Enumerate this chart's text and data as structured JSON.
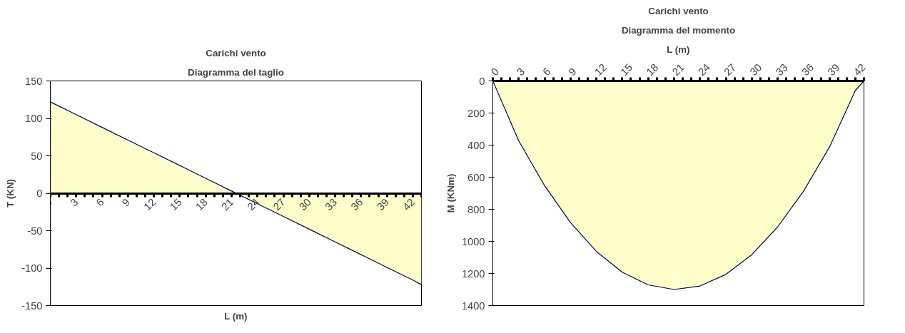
{
  "chart_data": [
    {
      "type": "area",
      "title": "Carichi vento",
      "subtitle": "Diagramma del taglio",
      "xlabel": "L (m)",
      "ylabel": "T (KN)",
      "x": [
        0,
        3,
        6,
        9,
        12,
        15,
        18,
        21,
        24,
        27,
        30,
        33,
        36,
        39,
        42,
        43
      ],
      "series": [
        {
          "color": "#ffffcc",
          "values": [
            122,
            105,
            88,
            71,
            54,
            37,
            20,
            3,
            -14,
            -31,
            -48,
            -65,
            -82,
            -99,
            -116,
            -122
          ]
        }
      ],
      "xlim": [
        0,
        43
      ],
      "xticks": [
        0,
        {
          "value": 1,
          "label": null
        },
        {
          "value": 2,
          "label": null
        },
        3,
        {
          "value": 4,
          "label": null
        },
        {
          "value": 5,
          "label": null
        },
        6,
        {
          "value": 7,
          "label": null
        },
        {
          "value": 8,
          "label": null
        },
        9,
        {
          "value": 10,
          "label": null
        },
        {
          "value": 11,
          "label": null
        },
        12,
        {
          "value": 13,
          "label": null
        },
        {
          "value": 14,
          "label": null
        },
        15,
        {
          "value": 16,
          "label": null
        },
        {
          "value": 17,
          "label": null
        },
        18,
        {
          "value": 19,
          "label": null
        },
        {
          "value": 20,
          "label": null
        },
        21,
        {
          "value": 22,
          "label": null
        },
        {
          "value": 23,
          "label": null
        },
        24,
        {
          "value": 25,
          "label": null
        },
        {
          "value": 26,
          "label": null
        },
        27,
        {
          "value": 28,
          "label": null
        },
        {
          "value": 29,
          "label": null
        },
        30,
        {
          "value": 31,
          "label": null
        },
        {
          "value": 32,
          "label": null
        },
        33,
        {
          "value": 34,
          "label": null
        },
        {
          "value": 35,
          "label": null
        },
        36,
        {
          "value": 37,
          "label": null
        },
        {
          "value": 38,
          "label": null
        },
        39,
        {
          "value": 40,
          "label": null
        },
        {
          "value": 41,
          "label": null
        },
        42,
        {
          "value": 43,
          "label": null
        }
      ],
      "ylim": [
        -150,
        150
      ],
      "yticks": [
        -150,
        -100,
        -50,
        0,
        50,
        100,
        150
      ],
      "grid": false
    },
    {
      "type": "area",
      "title": "Carichi vento",
      "subtitle": "Diagramma del momento",
      "xlabel": "L (m)",
      "ylabel": "M (KNm)",
      "x": [
        0,
        3,
        6,
        9,
        12,
        15,
        18,
        21,
        24,
        27,
        30,
        33,
        36,
        39,
        42,
        43
      ],
      "series": [
        {
          "color": "#ffffcc",
          "values": [
            0,
            373,
            653,
            883,
            1063,
            1192,
            1271,
            1300,
            1278,
            1206,
            1083,
            910,
            687,
            413,
            60,
            0
          ]
        }
      ],
      "xlim": [
        0,
        43
      ],
      "xticks": [
        0,
        {
          "value": 1,
          "label": null
        },
        {
          "value": 2,
          "label": null
        },
        3,
        {
          "value": 4,
          "label": null
        },
        {
          "value": 5,
          "label": null
        },
        6,
        {
          "value": 7,
          "label": null
        },
        {
          "value": 8,
          "label": null
        },
        9,
        {
          "value": 10,
          "label": null
        },
        {
          "value": 11,
          "label": null
        },
        12,
        {
          "value": 13,
          "label": null
        },
        {
          "value": 14,
          "label": null
        },
        15,
        {
          "value": 16,
          "label": null
        },
        {
          "value": 17,
          "label": null
        },
        18,
        {
          "value": 19,
          "label": null
        },
        {
          "value": 20,
          "label": null
        },
        21,
        {
          "value": 22,
          "label": null
        },
        {
          "value": 23,
          "label": null
        },
        24,
        {
          "value": 25,
          "label": null
        },
        {
          "value": 26,
          "label": null
        },
        27,
        {
          "value": 28,
          "label": null
        },
        {
          "value": 29,
          "label": null
        },
        30,
        {
          "value": 31,
          "label": null
        },
        {
          "value": 32,
          "label": null
        },
        33,
        {
          "value": 34,
          "label": null
        },
        {
          "value": 35,
          "label": null
        },
        36,
        {
          "value": 37,
          "label": null
        },
        {
          "value": 38,
          "label": null
        },
        39,
        {
          "value": 40,
          "label": null
        },
        {
          "value": 41,
          "label": null
        },
        42,
        {
          "value": 43,
          "label": null
        }
      ],
      "ylim": [
        1400,
        0
      ],
      "yticks": [
        0,
        200,
        400,
        600,
        800,
        1000,
        1200,
        1400
      ],
      "grid": false
    }
  ]
}
